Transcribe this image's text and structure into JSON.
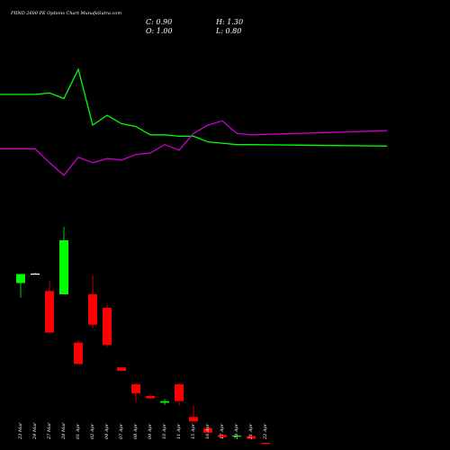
{
  "chart_data": {
    "type": "candlestick",
    "title": "PIIND 2600  PE Options  Chart MunafaSutra.com",
    "ohlc": {
      "close_label": "C: 0.90",
      "high_label": "H: 1.30",
      "open_label": "O: 1.00",
      "low_label": "L: 0.80"
    },
    "categories": [
      "23 Mar",
      "24 Mar",
      "27 Mar",
      "28 Mar",
      "01 Apr",
      "02 Apr",
      "04 Apr",
      "07 Apr",
      "08 Apr",
      "09 Apr",
      "10 Apr",
      "11 Apr",
      "15 Apr",
      "16 Apr",
      "17 Apr",
      "20 Apr",
      "21 Apr",
      "22 Apr"
    ],
    "candles": [
      {
        "open": 57.0,
        "high": 61.0,
        "low": 50.5,
        "close": 61.0
      },
      {
        "open": 61.2,
        "high": 61.5,
        "low": 60.9,
        "close": 61.2
      },
      {
        "open": 53.5,
        "high": 58.0,
        "low": 35.0,
        "close": 35.0
      },
      {
        "open": 52.0,
        "high": 82.0,
        "low": 52.0,
        "close": 76.0
      },
      {
        "open": 30.5,
        "high": 31.5,
        "low": 21.0,
        "close": 21.0
      },
      {
        "open": 52.0,
        "high": 60.5,
        "low": 37.0,
        "close": 38.5
      },
      {
        "open": 46.0,
        "high": 47.5,
        "low": 28.5,
        "close": 29.5
      },
      {
        "open": 19.5,
        "high": 19.8,
        "low": 17.8,
        "close": 18.0
      },
      {
        "open": 12.0,
        "high": 12.5,
        "low": 4.5,
        "close": 8.0
      },
      {
        "open": 6.8,
        "high": 7.5,
        "low": 5.5,
        "close": 5.8
      },
      {
        "open": 3.8,
        "high": 5.5,
        "low": 2.8,
        "close": 4.5
      },
      {
        "open": 12.0,
        "high": 12.5,
        "low": 2.5,
        "close": 4.5
      },
      {
        "open": -2.5,
        "high": 2.5,
        "low": -4.5,
        "close": -4.5
      },
      {
        "open": -7.5,
        "high": -7.5,
        "low": -9.5,
        "close": -9.5
      },
      {
        "open": -10.5,
        "high": -10.5,
        "low": -11.5,
        "close": -11.5
      },
      {
        "open": -11.0,
        "high": -10.5,
        "low": -11.2,
        "close": -10.8
      },
      {
        "open": -11.0,
        "high": -11.0,
        "low": -12.2,
        "close": -12.2
      },
      {
        "open": -14.0,
        "high": -14.0,
        "low": -14.5,
        "close": -14.5
      }
    ],
    "series": [
      {
        "color": "#00ff00",
        "values": [
          82,
          82,
          83,
          79,
          100,
          60,
          67,
          61,
          59,
          53,
          53,
          52,
          52,
          48,
          47,
          46,
          46,
          45
        ]
      },
      {
        "color": "#cc00cc",
        "values": [
          43,
          43,
          33,
          24,
          37,
          33,
          36,
          35,
          39,
          40,
          46,
          42,
          54,
          60,
          63,
          54,
          53,
          56
        ]
      }
    ],
    "colors": {
      "up": "#00ff00",
      "down": "#ff0000",
      "neutral": "#ffffff",
      "background": "#000000"
    }
  }
}
